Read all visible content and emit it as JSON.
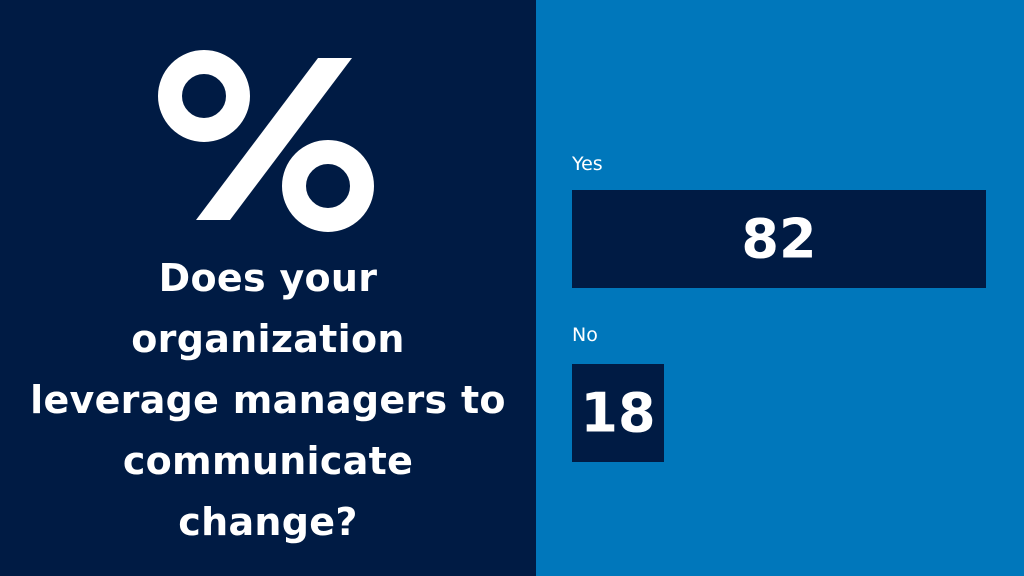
{
  "colors": {
    "left_background": "#001b44",
    "right_background": "#0077bb",
    "bar_fill": "#001b44",
    "text": "#ffffff"
  },
  "icon": "percent-icon",
  "question": "Does your organization leverage managers to communicate change?",
  "chart_data": {
    "type": "bar",
    "orientation": "horizontal",
    "categories": [
      "Yes",
      "No"
    ],
    "values": [
      82,
      18
    ],
    "data_labels": [
      "82",
      "18"
    ],
    "xlim": [
      0,
      82
    ],
    "grid": false
  }
}
